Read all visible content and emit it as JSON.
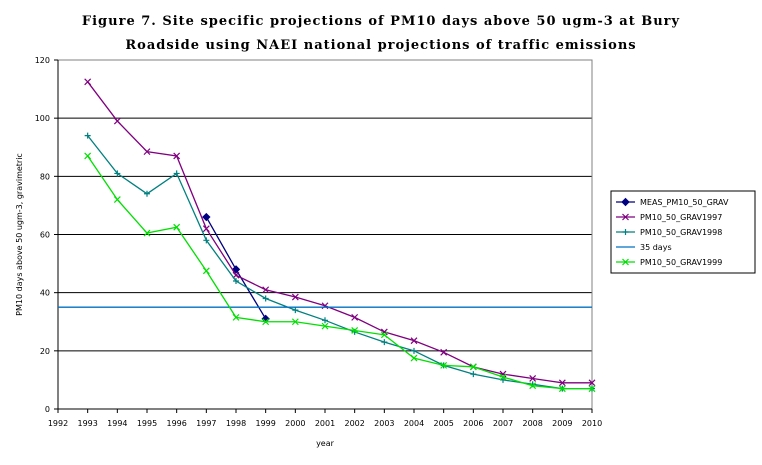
{
  "title": {
    "line1": "Figure 7. Site specific projections of PM10 days above 50 ugm-3 at Bury",
    "line2": "Roadside using NAEI national projections of traffic emissions"
  },
  "chart_data": {
    "type": "line",
    "xlabel": "year",
    "ylabel": "PM10 days above 50 ugm-3, gravimetric",
    "xlim": [
      1992,
      2010
    ],
    "ylim": [
      0,
      120
    ],
    "xticks": [
      "1992",
      "1993",
      "1994",
      "1995",
      "1996",
      "1997",
      "1998",
      "1999",
      "2000",
      "2001",
      "2002",
      "2003",
      "2004",
      "2005",
      "2006",
      "2007",
      "2008",
      "2009",
      "2010"
    ],
    "yticks": [
      "0",
      "20",
      "40",
      "60",
      "80",
      "100",
      "120"
    ],
    "grid": "horizontal",
    "legend_position": "right",
    "series": [
      {
        "name": "MEAS_PM10_50_GRAV",
        "color": "#000080",
        "marker": "diamond",
        "x": [
          1997,
          1998,
          1999
        ],
        "y": [
          66,
          48,
          31
        ]
      },
      {
        "name": "PM10_50_GRAV1997",
        "color": "#800080",
        "marker": "x",
        "x": [
          1993,
          1994,
          1995,
          1996,
          1997,
          1998,
          1999,
          2000,
          2001,
          2002,
          2003,
          2004,
          2005,
          2006,
          2007,
          2008,
          2009,
          2010
        ],
        "y": [
          112.5,
          99,
          88.5,
          87,
          62,
          46,
          41,
          38.5,
          35.5,
          31.5,
          26.5,
          23.5,
          19.5,
          14.5,
          12,
          10.5,
          9,
          9
        ]
      },
      {
        "name": "PM10_50_GRAV1998",
        "color": "#008080",
        "marker": "plus",
        "x": [
          1993,
          1994,
          1995,
          1996,
          1997,
          1998,
          1999,
          2000,
          2001,
          2002,
          2003,
          2004,
          2005,
          2006,
          2007,
          2008,
          2009,
          2010
        ],
        "y": [
          94,
          81,
          74,
          81,
          58,
          44,
          38,
          34,
          30.5,
          26.5,
          23,
          20,
          15,
          12,
          10,
          8.5,
          7,
          7
        ]
      },
      {
        "name": "35 days",
        "color": "#0070C0",
        "marker": "none",
        "x": [
          1992,
          2010
        ],
        "y": [
          35,
          35
        ]
      },
      {
        "name": "PM10_50_GRAV1999",
        "color": "#00E000",
        "marker": "x",
        "x": [
          1993,
          1994,
          1995,
          1996,
          1997,
          1998,
          1999,
          2000,
          2001,
          2002,
          2003,
          2004,
          2005,
          2006,
          2007,
          2008,
          2009,
          2010
        ],
        "y": [
          87,
          72,
          60.5,
          62.5,
          47.5,
          31.5,
          30,
          30,
          28.5,
          27,
          25.5,
          17.5,
          15,
          14.5,
          11,
          8,
          7,
          7
        ]
      }
    ]
  }
}
